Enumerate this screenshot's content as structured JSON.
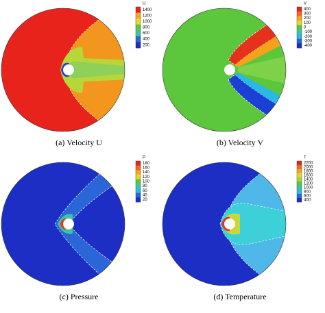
{
  "panels": [
    {
      "caption": "(a)   Velocity U",
      "colorbar": {
        "title": "U",
        "labels": [
          "1400",
          "1200",
          "1000",
          "800",
          "600",
          "400",
          "200"
        ]
      }
    },
    {
      "caption": "(b)   Velocity V",
      "colorbar": {
        "title": "V",
        "labels": [
          "400",
          "300",
          "200",
          "100",
          "0",
          "-100",
          "-200",
          "-300",
          "-400"
        ]
      }
    },
    {
      "caption": "(c)   Pressure",
      "colorbar": {
        "title": "P",
        "labels": [
          "180",
          "160",
          "140",
          "120",
          "100",
          "80",
          "60",
          "40",
          "20"
        ]
      }
    },
    {
      "caption": "(d)   Temperature",
      "colorbar": {
        "title": "T",
        "labels": [
          "2200",
          "2000",
          "1800",
          "1600",
          "1400",
          "1200",
          "1000",
          "800",
          "600",
          "400"
        ]
      }
    }
  ]
}
